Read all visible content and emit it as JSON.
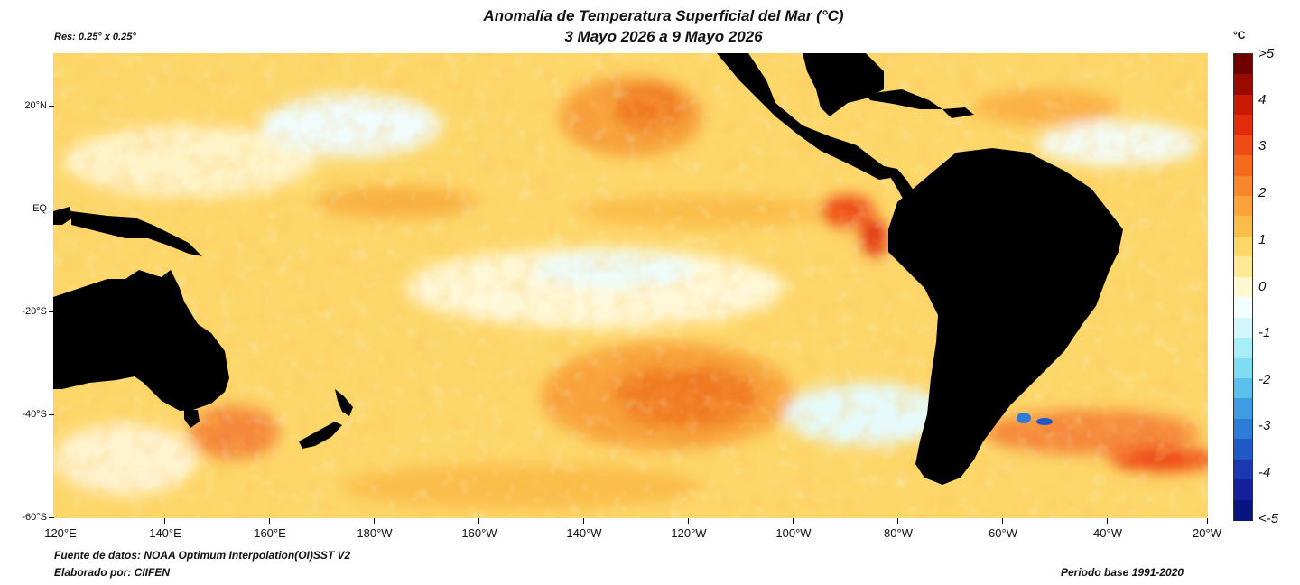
{
  "title": {
    "line1": "Anomalía de Temperatura Superficial del Mar (°C)",
    "line2": "3 Mayo 2026 a 9 Mayo 2026"
  },
  "resolution": "Res: 0.25° x 0.25°",
  "map": {
    "lat_range": [
      -60,
      30
    ],
    "lon_range_labels": [
      "120°E",
      "140°E",
      "160°E",
      "180°W",
      "160°W",
      "140°W",
      "120°W",
      "100°W",
      "80°W",
      "60°W",
      "40°W",
      "20°W"
    ],
    "lat_labels": [
      "20°N",
      "EQ",
      "-20°S",
      "-40°S",
      "-60°S"
    ],
    "land_color": "#000000",
    "features": [
      {
        "name": "Australia",
        "type": "land"
      },
      {
        "name": "New Zealand",
        "type": "land"
      },
      {
        "name": "New Guinea",
        "type": "land"
      },
      {
        "name": "Tasmania",
        "type": "land"
      },
      {
        "name": "South America",
        "type": "land"
      },
      {
        "name": "Central America",
        "type": "land"
      },
      {
        "name": "Mexico",
        "type": "land"
      },
      {
        "name": "Caribbean",
        "type": "land"
      }
    ]
  },
  "legend": {
    "unit": "°C",
    "labels": [
      ">5",
      "4",
      "3",
      "2",
      "1",
      "0",
      "-1",
      "-2",
      "-3",
      "-4",
      "<-5"
    ],
    "colors": [
      "#6e0000",
      "#9a0a00",
      "#c81a00",
      "#e02c0a",
      "#ef4b14",
      "#f56a1c",
      "#f8862a",
      "#fba23a",
      "#fbbd48",
      "#fdd765",
      "#fee996",
      "#fff8d0",
      "#f4ffff",
      "#d2f8fc",
      "#a8eef8",
      "#80dcf2",
      "#5cc0ec",
      "#3f9ce2",
      "#2c7cd8",
      "#2058c8",
      "#1a38b4",
      "#14209c",
      "#0a1480"
    ]
  },
  "footer": {
    "source": "Fuente de datos: NOAA Optimum Interpolation(OI)SST V2",
    "author": "Elaborado por: CIIFEN",
    "base_period": "Periodo base 1991-2020"
  }
}
